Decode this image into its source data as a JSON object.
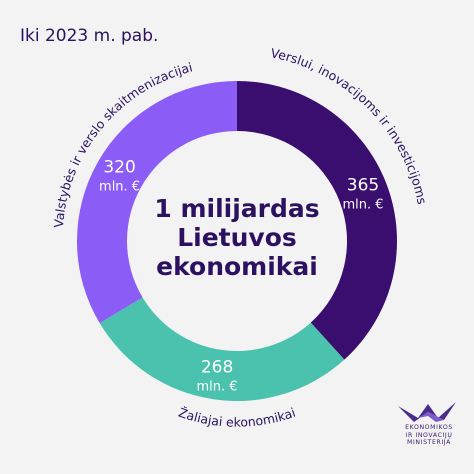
{
  "header": {
    "period": "Iki 2023 m. pab."
  },
  "center": {
    "line1": "1 milijardas",
    "line2": "Lietuvos",
    "line3": "ekonomikai"
  },
  "colors": {
    "business": "#3a0e6e",
    "digital": "#8b5cf6",
    "green": "#4bc2ad",
    "background": "#f3f3f3",
    "text_dark": "#2c1160",
    "text_on_slice": "#ffffff"
  },
  "chart_data": {
    "type": "pie",
    "donut": true,
    "unit": "mln. €",
    "slices": [
      {
        "label": "Verslui, inovacijoms ir investicijoms",
        "value": 365,
        "value_label": "365",
        "unit_label": "mln. €",
        "color": "#3a0e6e"
      },
      {
        "label": "Žaliajai ekonomikai",
        "value": 268,
        "value_label": "268",
        "unit_label": "mln. €",
        "color": "#4bc2ad"
      },
      {
        "label": "Valstybės ir verslo skaitmenizacijai",
        "value": 320,
        "value_label": "320",
        "unit_label": "mln. €",
        "color": "#8b5cf6"
      }
    ]
  },
  "logo": {
    "line1": "EKONOMIKOS",
    "line2": "IR INOVACIJŲ",
    "line3": "MINISTERIJA"
  }
}
